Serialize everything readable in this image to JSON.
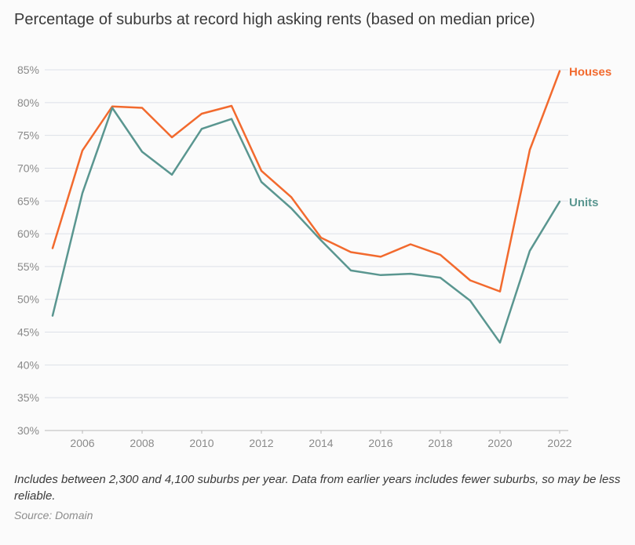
{
  "title": "Percentage of suburbs at record high asking rents (based on median price)",
  "note": "Includes between 2,300 and 4,100 suburbs per year. Data from earlier years includes fewer suburbs, so may be less reliable.",
  "source": "Source: Domain",
  "chart_data": {
    "type": "line",
    "x": [
      2005,
      2006,
      2007,
      2008,
      2009,
      2010,
      2011,
      2012,
      2013,
      2014,
      2015,
      2016,
      2017,
      2018,
      2019,
      2020,
      2021,
      2022
    ],
    "xticks": [
      "2006",
      "2008",
      "2010",
      "2012",
      "2014",
      "2016",
      "2018",
      "2020",
      "2022"
    ],
    "yticks": [
      "30%",
      "35%",
      "40%",
      "45%",
      "50%",
      "55%",
      "60%",
      "65%",
      "70%",
      "75%",
      "80%",
      "85%"
    ],
    "ylim": [
      30,
      85
    ],
    "xlim": [
      2005,
      2022
    ],
    "grid": true,
    "series": [
      {
        "name": "Houses",
        "color": "#f26a2e",
        "values": [
          57.8,
          72.7,
          79.4,
          79.2,
          74.7,
          78.3,
          79.5,
          69.6,
          65.6,
          59.4,
          57.2,
          56.5,
          58.4,
          56.8,
          52.9,
          51.2,
          72.8,
          84.8
        ]
      },
      {
        "name": "Units",
        "color": "#5a9690",
        "values": [
          47.5,
          66.2,
          79.2,
          72.5,
          69.0,
          76.0,
          77.5,
          67.9,
          63.9,
          59.0,
          54.4,
          53.7,
          53.9,
          53.3,
          49.8,
          43.4,
          57.4,
          64.9
        ]
      }
    ]
  }
}
